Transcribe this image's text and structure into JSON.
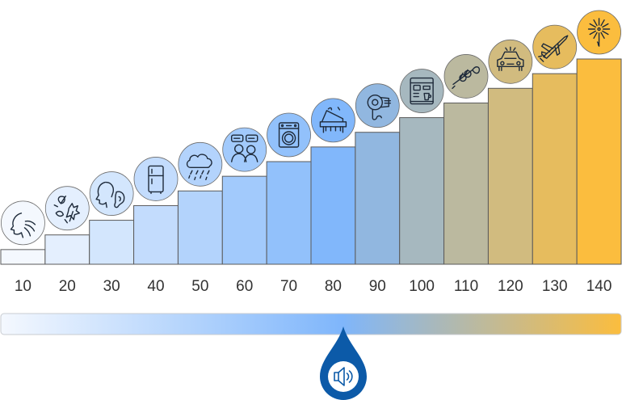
{
  "chart_data": {
    "type": "bar",
    "title": "",
    "xlabel": "",
    "ylabel": "",
    "categories": [
      "10",
      "20",
      "30",
      "40",
      "50",
      "60",
      "70",
      "80",
      "90",
      "100",
      "110",
      "120",
      "130",
      "140"
    ],
    "values": [
      10,
      20,
      30,
      40,
      50,
      60,
      70,
      80,
      90,
      100,
      110,
      120,
      130,
      140
    ],
    "ylim": [
      0,
      140
    ],
    "grid": false,
    "legend": "none",
    "bar_icons": [
      "breathing-icon",
      "rustling-leaves-icon",
      "whisper-icon",
      "refrigerator-icon",
      "rain-icon",
      "conversation-icon",
      "washing-machine-icon",
      "piano-icon",
      "hair-dryer-icon",
      "coffee-machine-icon",
      "trumpet-icon",
      "car-horn-icon",
      "jet-plane-icon",
      "fireworks-icon"
    ],
    "colors": {
      "start": "#f4f8fe",
      "middle": "#7fb6fb",
      "end": "#fbbd3e",
      "bar_stroke": "#5a5a5a",
      "icon_stroke": "#1e2a3a",
      "pointer": "#0c5aa8"
    },
    "scale_marker": {
      "value": 90,
      "icon": "speaker-icon"
    }
  }
}
